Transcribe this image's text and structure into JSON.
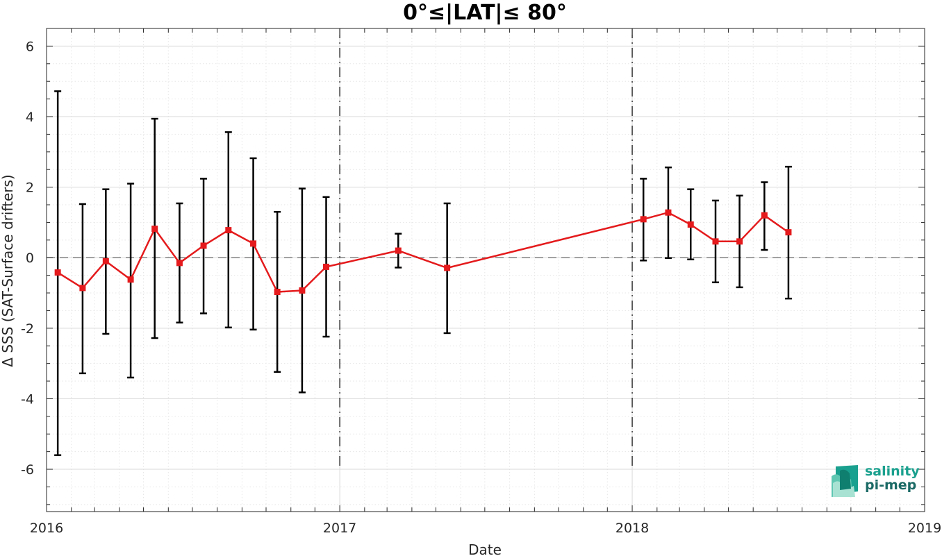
{
  "chart_data": {
    "type": "line",
    "title": "0°≤|LAT|≤ 80°",
    "xlabel": "Date",
    "ylabel": "Δ SSS (SAT-Surface drifters)",
    "xlim": [
      "2016-01-01",
      "2019-01-01"
    ],
    "ylim": [
      -7.2,
      6.5
    ],
    "xticks": [
      {
        "date": "2016-01-01",
        "label": "2016"
      },
      {
        "date": "2017-01-01",
        "label": "2017"
      },
      {
        "date": "2018-01-01",
        "label": "2018"
      },
      {
        "date": "2019-01-01",
        "label": "2019"
      }
    ],
    "yticks": [
      {
        "value": 6,
        "label": "6"
      },
      {
        "value": 4,
        "label": "4"
      },
      {
        "value": 2,
        "label": "2"
      },
      {
        "value": 0,
        "label": "0"
      },
      {
        "value": -2,
        "label": "-2"
      },
      {
        "value": -4,
        "label": "-4"
      },
      {
        "value": -6,
        "label": "-6"
      }
    ],
    "grid": true,
    "reference_line": 0,
    "vertical_markers": [
      "2017-01-01",
      "2018-01-01"
    ],
    "series": [
      {
        "color": "#e41a1c",
        "points": [
          {
            "x": "2016-01-15",
            "y": -0.42,
            "lo": -5.6,
            "hi": 4.72
          },
          {
            "x": "2016-02-15",
            "y": -0.86,
            "lo": -3.28,
            "hi": 1.52
          },
          {
            "x": "2016-03-15",
            "y": -0.1,
            "lo": -2.16,
            "hi": 1.94
          },
          {
            "x": "2016-04-15",
            "y": -0.62,
            "lo": -3.4,
            "hi": 2.1
          },
          {
            "x": "2016-05-15",
            "y": 0.82,
            "lo": -2.28,
            "hi": 3.94
          },
          {
            "x": "2016-06-15",
            "y": -0.15,
            "lo": -1.84,
            "hi": 1.54
          },
          {
            "x": "2016-07-15",
            "y": 0.34,
            "lo": -1.58,
            "hi": 2.24
          },
          {
            "x": "2016-08-15",
            "y": 0.78,
            "lo": -1.98,
            "hi": 3.56
          },
          {
            "x": "2016-09-15",
            "y": 0.4,
            "lo": -2.04,
            "hi": 2.82
          },
          {
            "x": "2016-10-15",
            "y": -0.97,
            "lo": -3.24,
            "hi": 1.3
          },
          {
            "x": "2016-11-15",
            "y": -0.93,
            "lo": -3.82,
            "hi": 1.96
          },
          {
            "x": "2016-12-15",
            "y": -0.26,
            "lo": -2.24,
            "hi": 1.72
          },
          {
            "x": "2017-03-15",
            "y": 0.2,
            "lo": -0.28,
            "hi": 0.68
          },
          {
            "x": "2017-05-15",
            "y": -0.29,
            "lo": -2.14,
            "hi": 1.54
          },
          {
            "x": "2018-01-15",
            "y": 1.09,
            "lo": -0.08,
            "hi": 2.24
          },
          {
            "x": "2018-02-15",
            "y": 1.28,
            "lo": -0.01,
            "hi": 2.56
          },
          {
            "x": "2018-03-15",
            "y": 0.94,
            "lo": -0.05,
            "hi": 1.94
          },
          {
            "x": "2018-04-15",
            "y": 0.46,
            "lo": -0.7,
            "hi": 1.62
          },
          {
            "x": "2018-05-15",
            "y": 0.46,
            "lo": -0.84,
            "hi": 1.76
          },
          {
            "x": "2018-06-15",
            "y": 1.2,
            "lo": 0.22,
            "hi": 2.14
          },
          {
            "x": "2018-07-15",
            "y": 0.72,
            "lo": -1.16,
            "hi": 2.58
          }
        ]
      }
    ]
  },
  "logo": {
    "line1": "salinity",
    "line2": "pi-mep"
  }
}
